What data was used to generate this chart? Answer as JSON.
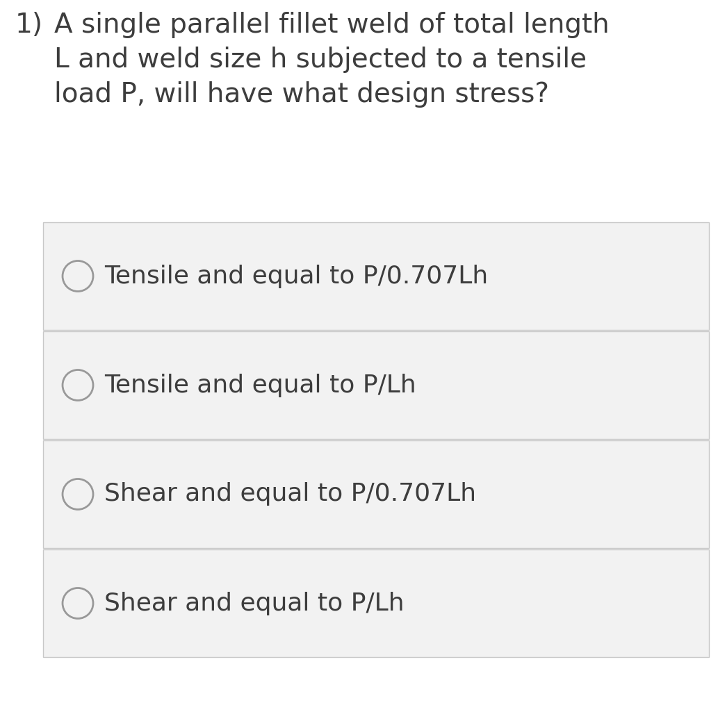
{
  "background_color": "#ffffff",
  "question_number": "1)",
  "question_text": "A single parallel fillet weld of total length\nL and weld size h subjected to a tensile\nload P, will have what design stress?",
  "options": [
    "Tensile and equal to P/0.707Lh",
    "Tensile and equal to P/Lh",
    "Shear and equal to P/0.707Lh",
    "Shear and equal to P/Lh"
  ],
  "option_box_color": "#f2f2f2",
  "option_border_color": "#c8c8c8",
  "question_color": "#3d3d3d",
  "option_text_color": "#3d3d3d",
  "circle_color": "#999999",
  "question_fontsize": 28,
  "option_fontsize": 26,
  "question_number_fontsize": 28,
  "fig_width": 10.33,
  "fig_height": 10.15,
  "dpi": 100
}
